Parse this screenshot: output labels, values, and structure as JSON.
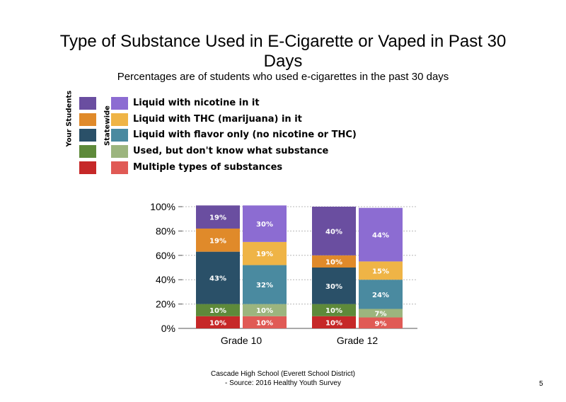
{
  "chart_data": {
    "type": "bar",
    "stacked": true,
    "title": "Type of Substance Used in E-Cigarette or Vaped in Past 30 Days",
    "subtitle": "Percentages are of students who used e-cigarettes in the past 30 days",
    "categories": [
      "Grade 10",
      "Grade 12"
    ],
    "groups": [
      "Your Students",
      "Statewide"
    ],
    "ylim": [
      0,
      100
    ],
    "yticks": [
      "0%",
      "20%",
      "40%",
      "60%",
      "80%",
      "100%"
    ],
    "grid": true,
    "legend_position": "top-left",
    "series": [
      {
        "name": "Multiple types of substances",
        "colors": {
          "Your Students": "#c62828",
          "Statewide": "#e05a55"
        },
        "values": {
          "Grade 10": {
            "Your Students": 10,
            "Statewide": 10
          },
          "Grade 12": {
            "Your Students": 10,
            "Statewide": 9
          }
        },
        "labels": {
          "Grade 10": {
            "Your Students": "10%",
            "Statewide": "10%"
          },
          "Grade 12": {
            "Your Students": "10%",
            "Statewide": "9%"
          }
        }
      },
      {
        "name": "Used, but don't know what substance",
        "colors": {
          "Your Students": "#5e8a3a",
          "Statewide": "#9cb57e"
        },
        "values": {
          "Grade 10": {
            "Your Students": 10,
            "Statewide": 10
          },
          "Grade 12": {
            "Your Students": 10,
            "Statewide": 7
          }
        },
        "labels": {
          "Grade 10": {
            "Your Students": "10%",
            "Statewide": "10%"
          },
          "Grade 12": {
            "Your Students": "10%",
            "Statewide": "7%"
          }
        }
      },
      {
        "name": "Liquid with flavor only (no nicotine or THC)",
        "colors": {
          "Your Students": "#2a5068",
          "Statewide": "#4a8aa0"
        },
        "values": {
          "Grade 10": {
            "Your Students": 43,
            "Statewide": 32
          },
          "Grade 12": {
            "Your Students": 30,
            "Statewide": 24
          }
        },
        "labels": {
          "Grade 10": {
            "Your Students": "43%",
            "Statewide": "32%"
          },
          "Grade 12": {
            "Your Students": "30%",
            "Statewide": "24%"
          }
        }
      },
      {
        "name": "Liquid with THC (marijuana) in it",
        "colors": {
          "Your Students": "#e08a2a",
          "Statewide": "#efb446"
        },
        "values": {
          "Grade 10": {
            "Your Students": 19,
            "Statewide": 19
          },
          "Grade 12": {
            "Your Students": 10,
            "Statewide": 15
          }
        },
        "labels": {
          "Grade 10": {
            "Your Students": "19%",
            "Statewide": "19%"
          },
          "Grade 12": {
            "Your Students": "10%",
            "Statewide": "15%"
          }
        }
      },
      {
        "name": "Liquid with nicotine in it",
        "colors": {
          "Your Students": "#6a4ea0",
          "Statewide": "#8c6cd2"
        },
        "values": {
          "Grade 10": {
            "Your Students": 19,
            "Statewide": 30
          },
          "Grade 12": {
            "Your Students": 40,
            "Statewide": 44
          }
        },
        "labels": {
          "Grade 10": {
            "Your Students": "19%",
            "Statewide": "30%"
          },
          "Grade 12": {
            "Your Students": "40%",
            "Statewide": "44%"
          }
        }
      }
    ]
  },
  "legend": {
    "your_students": "Your Students",
    "statewide": "Statewide",
    "items": [
      {
        "label": "Liquid with nicotine in it",
        "ys_color": "#6a4ea0",
        "sw_color": "#8c6cd2"
      },
      {
        "label": "Liquid with THC (marijuana) in it",
        "ys_color": "#e08a2a",
        "sw_color": "#efb446"
      },
      {
        "label": "Liquid with flavor only (no nicotine or THC)",
        "ys_color": "#2a5068",
        "sw_color": "#4a8aa0"
      },
      {
        "label": "Used, but don't know what substance",
        "ys_color": "#5e8a3a",
        "sw_color": "#9cb57e"
      },
      {
        "label": "Multiple types of substances",
        "ys_color": "#c62828",
        "sw_color": "#e05a55"
      }
    ]
  },
  "footer": {
    "line1": "Cascade High School (Everett School District)",
    "line2": "- Source: 2016 Healthy Youth Survey",
    "page": "5"
  }
}
